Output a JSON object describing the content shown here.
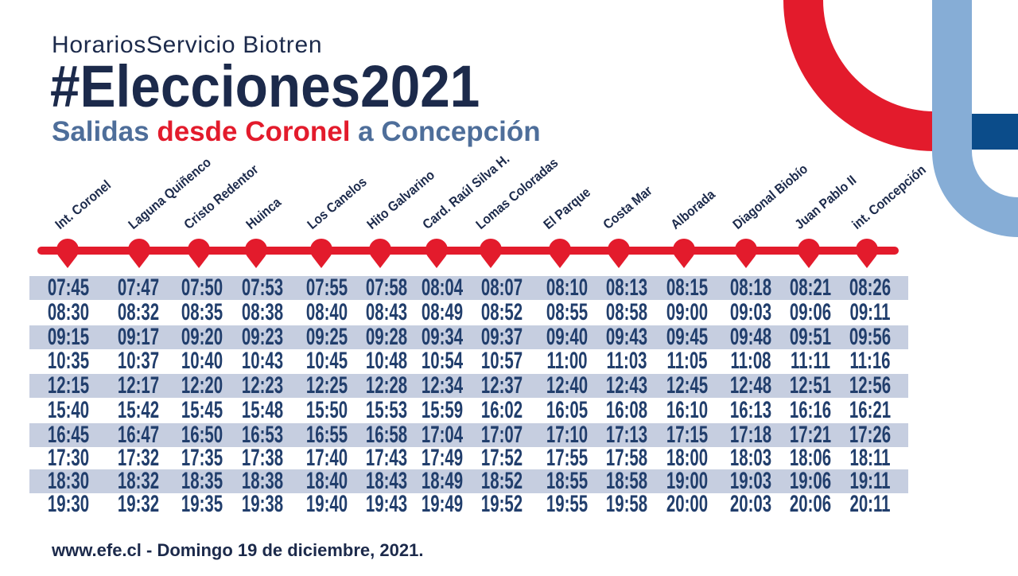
{
  "header": {
    "kicker": "HorariosServicio Biotren",
    "title": "#Elecciones2021",
    "subtitle": {
      "lead": "Salidas",
      "highlight": "desde Coronel",
      "tail": "a Concepción"
    }
  },
  "stations": [
    "Int. Coronel",
    "Laguna Quiñenco",
    "Cristo Redentor",
    "Huinca",
    "Los Canelos",
    "Hito Galvarino",
    "Card. Raúl Silva H.",
    "Lomas Coloradas",
    "El Parque",
    "Costa Mar",
    "Alborada",
    "Diagonal Biobío",
    "Juan Pablo II",
    "int. Concepción"
  ],
  "schedule": [
    [
      "07:45",
      "07:47",
      "07:50",
      "07:53",
      "07:55",
      "07:58",
      "08:04",
      "08:07",
      "08:10",
      "08:13",
      "08:15",
      "08:18",
      "08:21",
      "08:26"
    ],
    [
      "08:30",
      "08:32",
      "08:35",
      "08:38",
      "08:40",
      "08:43",
      "08:49",
      "08:52",
      "08:55",
      "08:58",
      "09:00",
      "09:03",
      "09:06",
      "09:11"
    ],
    [
      "09:15",
      "09:17",
      "09:20",
      "09:23",
      "09:25",
      "09:28",
      "09:34",
      "09:37",
      "09:40",
      "09:43",
      "09:45",
      "09:48",
      "09:51",
      "09:56"
    ],
    [
      "10:35",
      "10:37",
      "10:40",
      "10:43",
      "10:45",
      "10:48",
      "10:54",
      "10:57",
      "11:00",
      "11:03",
      "11:05",
      "11:08",
      "11:11",
      "11:16"
    ],
    [
      "12:15",
      "12:17",
      "12:20",
      "12:23",
      "12:25",
      "12:28",
      "12:34",
      "12:37",
      "12:40",
      "12:43",
      "12:45",
      "12:48",
      "12:51",
      "12:56"
    ],
    [
      "15:40",
      "15:42",
      "15:45",
      "15:48",
      "15:50",
      "15:53",
      "15:59",
      "16:02",
      "16:05",
      "16:08",
      "16:10",
      "16:13",
      "16:16",
      "16:21"
    ],
    [
      "16:45",
      "16:47",
      "16:50",
      "16:53",
      "16:55",
      "16:58",
      "17:04",
      "17:07",
      "17:10",
      "17:13",
      "17:15",
      "17:18",
      "17:21",
      "17:26"
    ],
    [
      "17:30",
      "17:32",
      "17:35",
      "17:38",
      "17:40",
      "17:43",
      "17:49",
      "17:52",
      "17:55",
      "17:58",
      "18:00",
      "18:03",
      "18:06",
      "18:11"
    ],
    [
      "18:30",
      "18:32",
      "18:35",
      "18:38",
      "18:40",
      "18:43",
      "18:49",
      "18:52",
      "18:55",
      "18:58",
      "19:00",
      "19:03",
      "19:06",
      "19:11"
    ],
    [
      "19:30",
      "19:32",
      "19:35",
      "19:38",
      "19:40",
      "19:43",
      "19:49",
      "19:52",
      "19:55",
      "19:58",
      "20:00",
      "20:03",
      "20:06",
      "20:11"
    ]
  ],
  "footer": {
    "text": "www.efe.cl - Domingo 19 de diciembre, 2021."
  },
  "icons": {
    "station_marker": "map-pin-icon"
  },
  "colors": {
    "navy": "#1c2a4b",
    "red": "#e31b2c",
    "steel_blue": "#4e6e9a",
    "light_blue": "#86add6",
    "dark_blue": "#0b4c8a",
    "row_shade": "#c6cee0",
    "time_text": "#213e6c"
  }
}
